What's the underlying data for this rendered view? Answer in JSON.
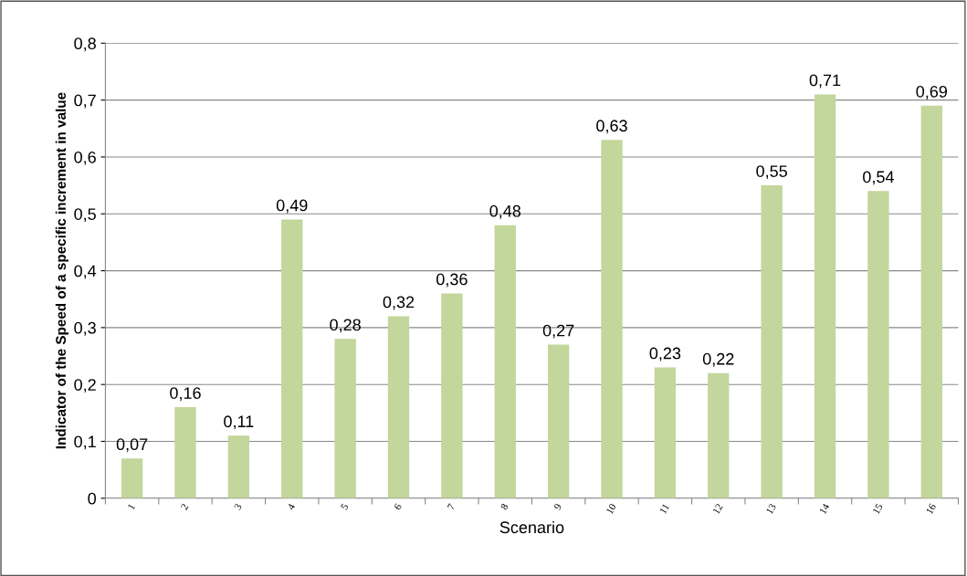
{
  "chart_data": {
    "type": "bar",
    "xlabel": "Scenario",
    "ylabel": "Indicator of the Speed of a specific increment in value",
    "categories": [
      "1",
      "2",
      "3",
      "4",
      "5",
      "6",
      "7",
      "8",
      "9",
      "10",
      "11",
      "12",
      "13",
      "14",
      "15",
      "16"
    ],
    "values": [
      0.07,
      0.16,
      0.11,
      0.49,
      0.28,
      0.32,
      0.36,
      0.48,
      0.27,
      0.63,
      0.23,
      0.22,
      0.55,
      0.71,
      0.54,
      0.69
    ],
    "value_labels": [
      "0,07",
      "0,16",
      "0,11",
      "0,49",
      "0,28",
      "0,32",
      "0,36",
      "0,48",
      "0,27",
      "0,63",
      "0,23",
      "0,22",
      "0,55",
      "0,71",
      "0,54",
      "0,69"
    ],
    "color": "#c3d69b",
    "ylim": [
      0,
      0.8
    ],
    "yticks": [
      0,
      {
        "value": 0.1,
        "label": "0,1"
      },
      {
        "value": 0.2,
        "label": "0,2"
      },
      {
        "value": 0.3,
        "label": "0,3"
      },
      {
        "value": 0.4,
        "label": "0,4"
      },
      {
        "value": 0.5,
        "label": "0,5"
      },
      {
        "value": 0.6,
        "label": "0,6"
      },
      {
        "value": 0.7,
        "label": "0,7"
      },
      {
        "value": 0.8,
        "label": "0,8"
      }
    ],
    "grid": "y"
  }
}
